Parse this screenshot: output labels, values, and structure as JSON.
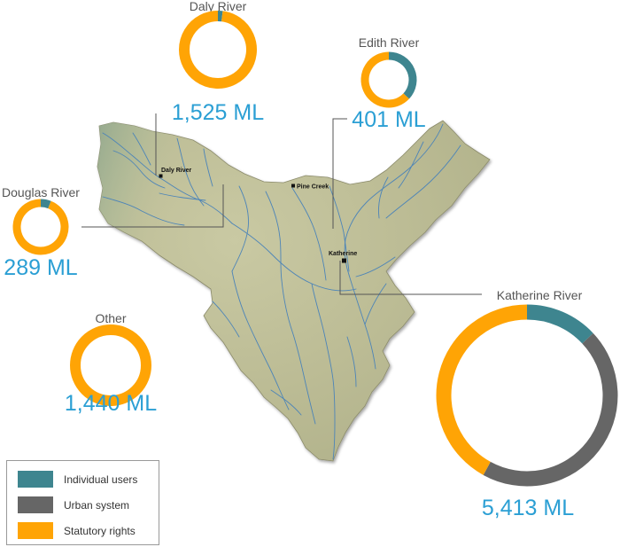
{
  "colors": {
    "individual": "#3e858f",
    "urban": "#666666",
    "statutory": "#ffa405",
    "amount_text": "#2b9fd4",
    "title_text": "#555555"
  },
  "legend": {
    "items": [
      {
        "key": "individual",
        "label": "Individual users"
      },
      {
        "key": "urban",
        "label": "Urban system"
      },
      {
        "key": "statutory",
        "label": "Statutory rights"
      }
    ]
  },
  "towns": [
    {
      "name": "Daly River"
    },
    {
      "name": "Pine Creek"
    },
    {
      "name": "Katherine"
    }
  ],
  "chart_data": [
    {
      "type": "pie",
      "title": "Daly River",
      "total_label": "1,525 ML",
      "total": 1525,
      "slices": [
        {
          "name": "Individual users",
          "value": 0.02
        },
        {
          "name": "Urban system",
          "value": 0.0
        },
        {
          "name": "Statutory rights",
          "value": 0.98
        }
      ]
    },
    {
      "type": "pie",
      "title": "Edith River",
      "total_label": "401 ML",
      "total": 401,
      "slices": [
        {
          "name": "Individual users",
          "value": 0.37
        },
        {
          "name": "Urban system",
          "value": 0.0
        },
        {
          "name": "Statutory rights",
          "value": 0.63
        }
      ]
    },
    {
      "type": "pie",
      "title": "Douglas River",
      "total_label": "289 ML",
      "total": 289,
      "slices": [
        {
          "name": "Individual users",
          "value": 0.06
        },
        {
          "name": "Urban system",
          "value": 0.0
        },
        {
          "name": "Statutory rights",
          "value": 0.94
        }
      ]
    },
    {
      "type": "pie",
      "title": "Other",
      "total_label": "1,440 ML",
      "total": 1440,
      "slices": [
        {
          "name": "Individual users",
          "value": 0.0
        },
        {
          "name": "Urban system",
          "value": 0.0
        },
        {
          "name": "Statutory rights",
          "value": 1.0
        }
      ]
    },
    {
      "type": "pie",
      "title": "Katherine River",
      "total_label": "5,413 ML",
      "total": 5413,
      "slices": [
        {
          "name": "Individual users",
          "value": 0.13
        },
        {
          "name": "Urban system",
          "value": 0.45
        },
        {
          "name": "Statutory rights",
          "value": 0.42
        }
      ]
    }
  ]
}
